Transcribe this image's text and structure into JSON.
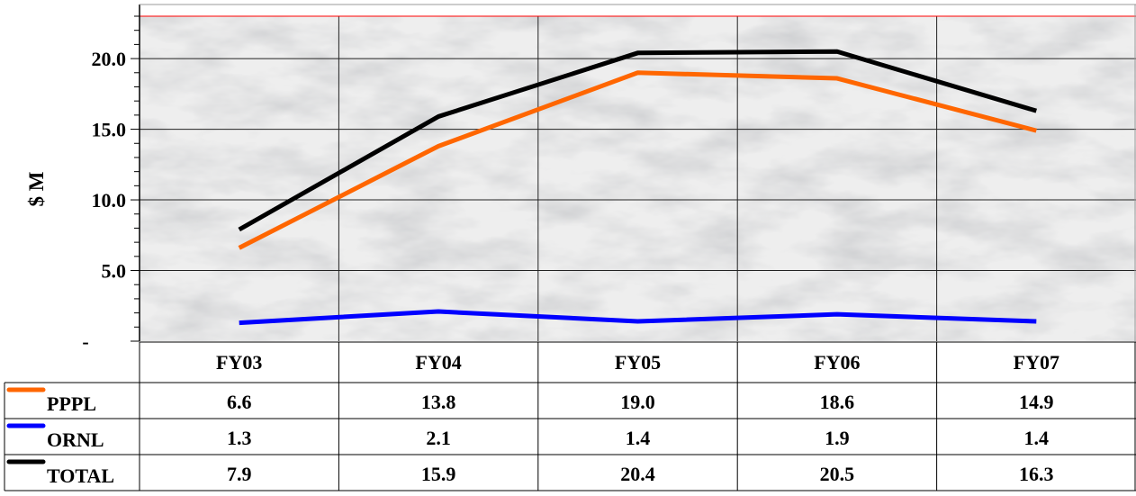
{
  "chart_data": {
    "type": "line",
    "title": "",
    "xlabel": "",
    "ylabel": "$ M",
    "ylim": [
      0,
      23
    ],
    "yticks": [
      0,
      5,
      10,
      15,
      20
    ],
    "ytick_labels": [
      "-",
      "5.0",
      "10.0",
      "15.0",
      "20.0"
    ],
    "grid": true,
    "categories": [
      "FY03",
      "FY04",
      "FY05",
      "FY06",
      "FY07"
    ],
    "series": [
      {
        "name": "PPPL",
        "color": "#ff6600",
        "values": [
          6.6,
          13.8,
          19.0,
          18.6,
          14.9
        ],
        "labels": [
          "6.6",
          "13.8",
          "19.0",
          "18.6",
          "14.9"
        ]
      },
      {
        "name": "ORNL",
        "color": "#0000ff",
        "values": [
          1.3,
          2.1,
          1.4,
          1.9,
          1.4
        ],
        "labels": [
          "1.3",
          "2.1",
          "1.4",
          "1.9",
          "1.4"
        ]
      },
      {
        "name": "TOTAL",
        "color": "#000000",
        "values": [
          7.9,
          15.9,
          20.4,
          20.5,
          16.3
        ],
        "labels": [
          "7.9",
          "15.9",
          "20.4",
          "20.5",
          "16.3"
        ]
      }
    ],
    "legend": "data-table-below"
  }
}
